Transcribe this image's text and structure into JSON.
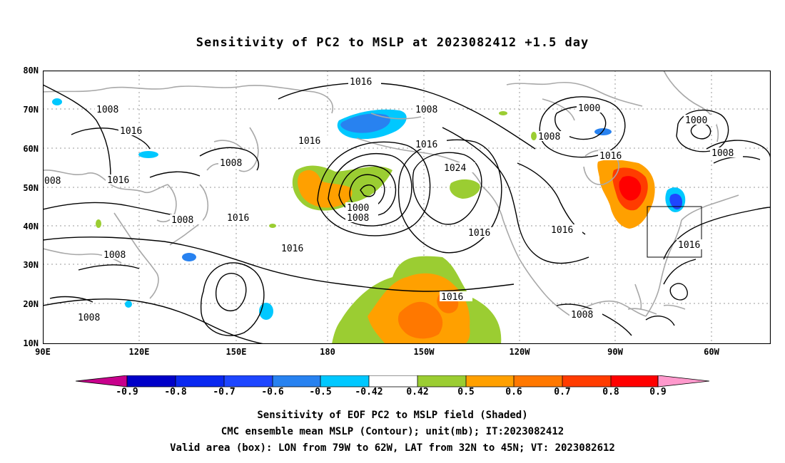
{
  "title": "Sensitivity of PC2 to MSLP at 2023082412 +1.5 day",
  "lat_labels": [
    "80N",
    "70N",
    "60N",
    "50N",
    "40N",
    "30N",
    "20N",
    "10N"
  ],
  "lon_labels": [
    "90E",
    "120E",
    "150E",
    "180",
    "150W",
    "120W",
    "90W",
    "60W"
  ],
  "contour_labels": {
    "c1": "1016",
    "c2": "1008",
    "c3": "1000",
    "c4": "1000",
    "c5": "1008",
    "c6": "1008",
    "c7": "1016",
    "c8": "1008",
    "c9": "008",
    "c10": "1016",
    "c11": "1016",
    "c12": "1016",
    "c13": "1024",
    "c14": "1000",
    "c15": "1008",
    "c16": "1008",
    "c17": "1016",
    "c18": "1016",
    "c19": "1016",
    "c20": "1008",
    "c21": "1016",
    "c22": "1016",
    "c23": "1008",
    "c24": "1008",
    "c25": "1016",
    "c26": "1016",
    "c27": "1008",
    "c28": "1016"
  },
  "colorbar": {
    "labels": [
      "-0.9",
      "-0.8",
      "-0.7",
      "-0.6",
      "-0.5",
      "-0.42",
      "0.42",
      "0.5",
      "0.6",
      "0.7",
      "0.8",
      "0.9"
    ],
    "colors": [
      "#c8008c",
      "#0000c8",
      "#0a28f0",
      "#1e46ff",
      "#2882f0",
      "#00c8ff",
      "#ffffff",
      "#9bcd32",
      "#ffa000",
      "#ff7800",
      "#ff3c00",
      "#ff0000",
      "#ff99cc"
    ]
  },
  "captions": [
    "Sensitivity of EOF PC2 to MSLP field (Shaded)",
    "CMC ensemble mean MSLP (Contour); unit(mb); IT:2023082412",
    "Valid area (box): LON from 79W to 62W, LAT from 32N to 45N; VT: 2023082612"
  ]
}
